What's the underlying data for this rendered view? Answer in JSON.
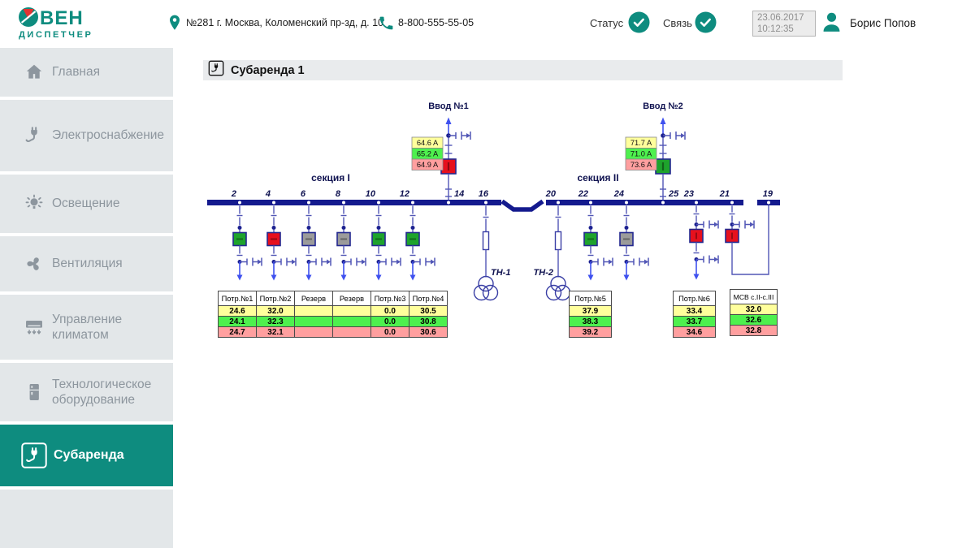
{
  "colors": {
    "teal": "#0e8c7f",
    "green": "#1ea32c",
    "red": "#e6101d",
    "gray": "#9b9b9b",
    "bands": [
      "#ffff9c",
      "#4ef04e",
      "#ff9f9f"
    ]
  },
  "header": {
    "logo": {
      "brand": "ОВЕН",
      "brand_rest": "ВЕН",
      "product": "ДИСПЕТЧЕР"
    },
    "address": "№281 г. Москва, Коломенский пр-зд, д. 10",
    "phone": "8-800-555-55-05",
    "status_label": "Статус",
    "link_label": "Связь",
    "date": "23.06.2017",
    "time": "10:12:35",
    "user_name": "Борис Попов"
  },
  "sidebar": {
    "items": [
      {
        "label": "Главная"
      },
      {
        "label": "Электроснабжение"
      },
      {
        "label": "Освещение"
      },
      {
        "label": "Вентиляция"
      },
      {
        "label": "Управление климатом"
      },
      {
        "label": "Технологическое оборудование"
      },
      {
        "label": "Субаренда"
      }
    ]
  },
  "main": {
    "title": "Субаренда 1"
  },
  "diagram": {
    "section1_label": "секция I",
    "section2_label": "секция II",
    "bus_labels": [
      "2",
      "4",
      "6",
      "8",
      "10",
      "12",
      "14",
      "16",
      "20",
      "22",
      "24",
      "25",
      "23",
      "21",
      "19"
    ],
    "input1": {
      "label": "Ввод №1",
      "values": [
        "64.6 A",
        "65.2 A",
        "64.9 A"
      ]
    },
    "input2": {
      "label": "Ввод №2",
      "values": [
        "71.7 A",
        "71.0 A",
        "73.6 A"
      ]
    },
    "transformer1_label": "ТН-1",
    "transformer2_label": "ТН-2",
    "breakers": {
      "f2": "green",
      "f4": "red",
      "f6": "gray",
      "f8": "gray",
      "f10": "green",
      "f12": "green",
      "f22": "green",
      "f24": "gray",
      "f23": "red",
      "f21": "red",
      "in1": "red",
      "in2": "green"
    },
    "tables": [
      {
        "headers": [
          "Потр.№1",
          "Потр.№2",
          "Резерв",
          "Резерв",
          "Потр.№3",
          "Потр.№4"
        ],
        "rows": [
          [
            "24.6",
            "32.0",
            "",
            "",
            "0.0",
            "30.5"
          ],
          [
            "24.1",
            "32.3",
            "",
            "",
            "0.0",
            "30.8"
          ],
          [
            "24.7",
            "32.1",
            "",
            "",
            "0.0",
            "30.6"
          ]
        ]
      },
      {
        "headers": [
          "Потр.№5"
        ],
        "rows": [
          [
            "37.9"
          ],
          [
            "38.3"
          ],
          [
            "39.2"
          ]
        ]
      },
      {
        "headers": [
          "Потр.№6"
        ],
        "rows": [
          [
            "33.4"
          ],
          [
            "33.7"
          ],
          [
            "34.6"
          ]
        ]
      },
      {
        "headers": [
          "МСВ с.II-с.III"
        ],
        "rows": [
          [
            "32.0"
          ],
          [
            "32.6"
          ],
          [
            "32.8"
          ]
        ]
      }
    ]
  }
}
